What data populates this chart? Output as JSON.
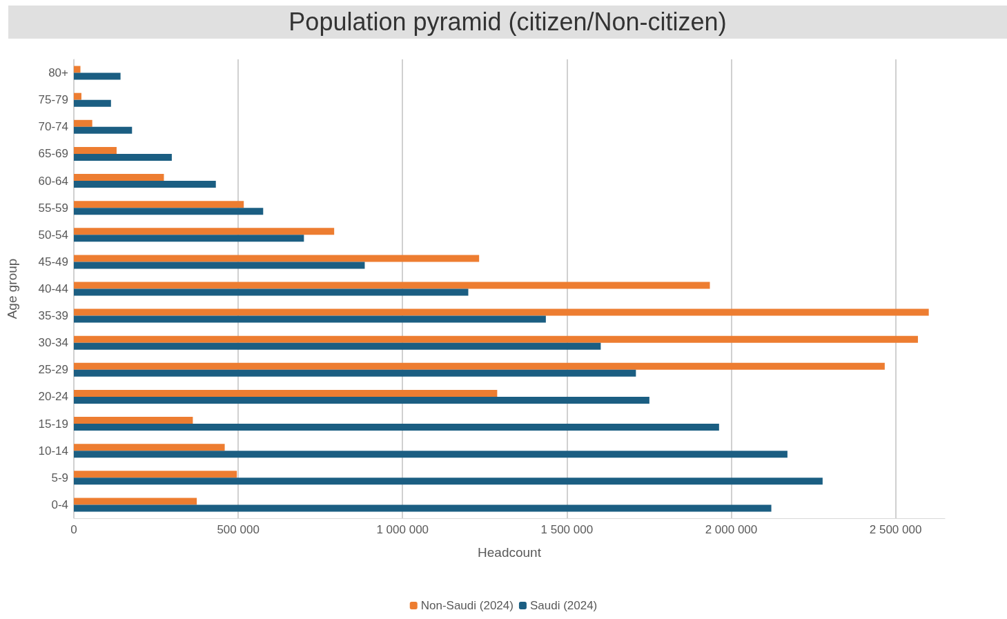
{
  "chart_data": {
    "type": "bar",
    "orientation": "horizontal",
    "title": "Population pyramid (citizen/Non-citizen)",
    "xlabel": "Headcount",
    "ylabel": "Age group",
    "categories": [
      "80+",
      "75-79",
      "70-74",
      "65-69",
      "60-64",
      "55-59",
      "50-54",
      "45-49",
      "40-44",
      "35-39",
      "30-34",
      "25-29",
      "20-24",
      "15-19",
      "10-14",
      "5-9",
      "0-4"
    ],
    "series": [
      {
        "name": "Non-Saudi (2024)",
        "color": "#ed7d31",
        "values": [
          20000,
          23000,
          56000,
          130000,
          274000,
          517000,
          792000,
          1233000,
          1935000,
          2601000,
          2568000,
          2467000,
          1288000,
          362000,
          459000,
          496000,
          374000
        ]
      },
      {
        "name": "Saudi (2024)",
        "color": "#1b5e82",
        "values": [
          142000,
          113000,
          177000,
          298000,
          432000,
          576000,
          700000,
          885000,
          1200000,
          1436000,
          1603000,
          1710000,
          1751000,
          1963000,
          2171000,
          2278000,
          2122000
        ]
      }
    ],
    "xlim": [
      0,
      2650000
    ],
    "xticks": [
      0,
      {
        "value": 500000,
        "label": "500 000"
      },
      {
        "value": 1000000,
        "label": "1 000 000"
      },
      {
        "value": 1500000,
        "label": "1 500 000"
      },
      {
        "value": 2000000,
        "label": "2 000 000"
      },
      {
        "value": 2500000,
        "label": "2 500 000"
      }
    ],
    "grid": "x",
    "legend": "bottom"
  }
}
